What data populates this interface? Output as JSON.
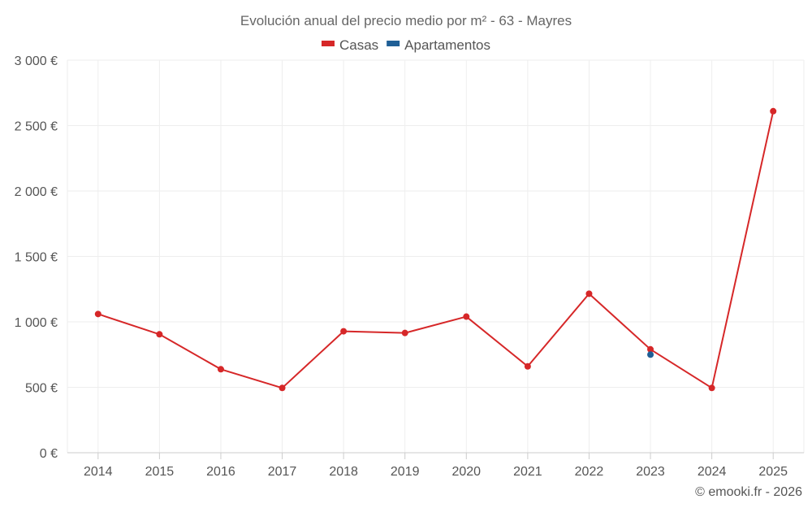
{
  "chart_data": {
    "type": "line",
    "title": "Evolución anual del precio medio por m² - 63 - Mayres",
    "xlabel": "",
    "ylabel": "",
    "categories": [
      "2014",
      "2015",
      "2016",
      "2017",
      "2018",
      "2019",
      "2020",
      "2021",
      "2022",
      "2023",
      "2024",
      "2025"
    ],
    "ylim": [
      0,
      3000
    ],
    "yticks": [
      0,
      500,
      1000,
      1500,
      2000,
      2500,
      3000
    ],
    "ytick_labels": [
      "0 €",
      "500 €",
      "1 000 €",
      "1 500 €",
      "2 000 €",
      "2 500 €",
      "3 000 €"
    ],
    "grid": true,
    "legend_position": "top-center",
    "series": [
      {
        "name": "Casas",
        "color": "#d62728",
        "values": [
          1060,
          905,
          638,
          495,
          928,
          915,
          1040,
          660,
          1215,
          790,
          495,
          2610
        ]
      },
      {
        "name": "Apartamentos",
        "color": "#1f5f96",
        "values": [
          null,
          null,
          null,
          null,
          null,
          null,
          null,
          null,
          null,
          750,
          null,
          null
        ]
      }
    ]
  },
  "footer": {
    "credit": "© emooki.fr - 2026"
  }
}
